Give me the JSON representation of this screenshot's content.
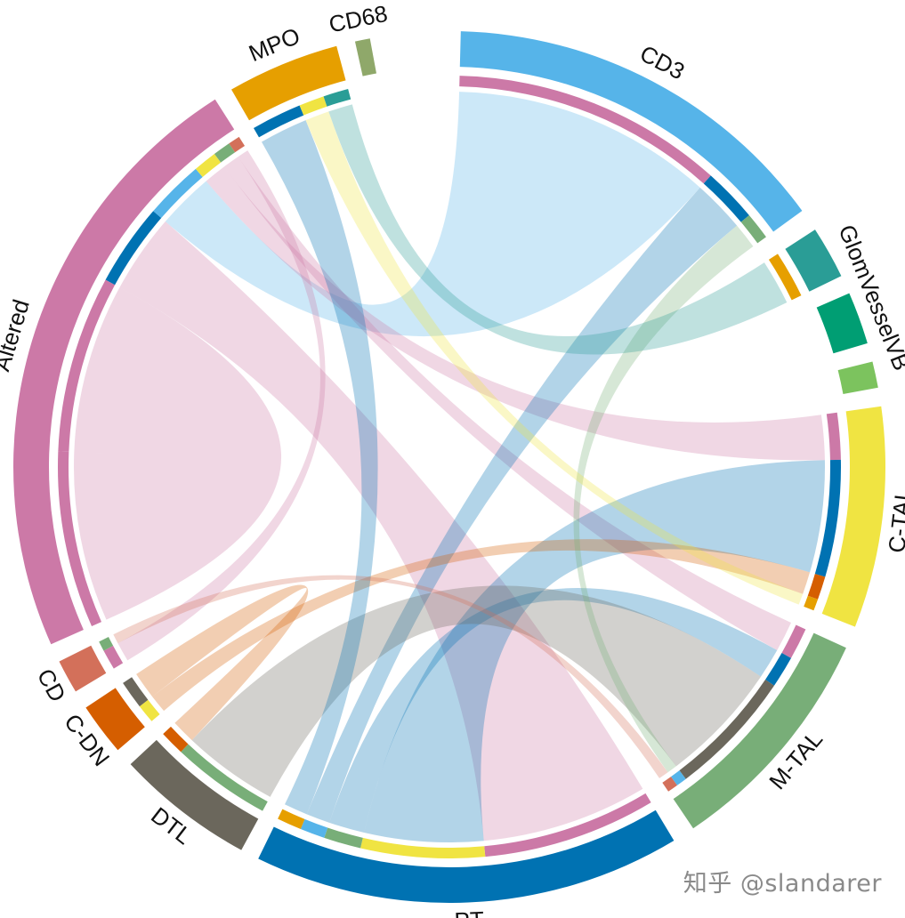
{
  "watermark": "知乎 @slandarer",
  "chart_data": {
    "type": "chord",
    "title": "",
    "segments": [
      {
        "name": "CD3",
        "color": "#56B4E9",
        "start_deg": 1.5,
        "end_deg": 54.0
      },
      {
        "name": "GlomVesselVB_a",
        "label": "",
        "color": "#2A9D96",
        "start_deg": 57.0,
        "end_deg": 64.0
      },
      {
        "name": "GlomVesselVB_b",
        "label": "",
        "color": "#009E73",
        "start_deg": 66.5,
        "end_deg": 73.5
      },
      {
        "name": "GlomVesselVB_c",
        "label": "",
        "color": "#7CC35E",
        "start_deg": 76.0,
        "end_deg": 79.5
      },
      {
        "name": "GlomVesselVB",
        "label": "GlomVesselVB",
        "color": "none",
        "start_deg": 57.0,
        "end_deg": 79.5
      },
      {
        "name": "C-TAL",
        "color": "#F0E442",
        "start_deg": 82.0,
        "end_deg": 111.5
      },
      {
        "name": "M-TAL",
        "color": "#78AE78",
        "start_deg": 114.5,
        "end_deg": 146.0
      },
      {
        "name": "PT",
        "color": "#0072B2",
        "start_deg": 149.0,
        "end_deg": 206.0
      },
      {
        "name": "DTL",
        "color": "#6B675C",
        "start_deg": 208.5,
        "end_deg": 227.0
      },
      {
        "name": "C-DN",
        "color": "#D55E00",
        "start_deg": 229.5,
        "end_deg": 236.5
      },
      {
        "name": "CD",
        "color": "#D3705A",
        "start_deg": 239.0,
        "end_deg": 243.5
      },
      {
        "name": "Altered",
        "color": "#CC79A7",
        "start_deg": 246.0,
        "end_deg": 327.5
      },
      {
        "name": "MPO",
        "color": "#E69F00",
        "start_deg": 330.0,
        "end_deg": 345.0
      },
      {
        "name": "CD68",
        "color": "#8FA86A",
        "start_deg": 347.5,
        "end_deg": 349.5
      }
    ],
    "links": [
      {
        "source": "Altered",
        "target": "Altered",
        "value": 30,
        "color": "#CC79A7"
      },
      {
        "source": "Altered",
        "target": "PT",
        "value": 14,
        "color": "#CC79A7"
      },
      {
        "source": "Altered",
        "target": "CD3",
        "value": 10,
        "color": "#56B4E9"
      },
      {
        "source": "Altered",
        "target": "C-TAL",
        "value": 4,
        "color": "#CC79A7"
      },
      {
        "source": "Altered",
        "target": "M-TAL",
        "value": 3,
        "color": "#CC79A7"
      },
      {
        "source": "PT",
        "target": "C-TAL",
        "value": 10,
        "color": "#0072B2"
      },
      {
        "source": "PT",
        "target": "M-TAL",
        "value": 3,
        "color": "#0072B2"
      },
      {
        "source": "PT",
        "target": "CD3",
        "value": 2,
        "color": "#0072B2"
      },
      {
        "source": "DTL",
        "target": "M-TAL",
        "value": 12,
        "color": "#6B675C"
      },
      {
        "source": "C-DN",
        "target": "C-TAL",
        "value": 2,
        "color": "#D55E00"
      },
      {
        "source": "DTL",
        "target": "C-DN",
        "value": 3,
        "color": "#D55E00"
      },
      {
        "source": "PT",
        "target": "MPO",
        "value": 2,
        "color": "#0072B2"
      },
      {
        "source": "M-TAL",
        "target": "CD3",
        "value": 1,
        "color": "#78AE78"
      },
      {
        "source": "C-TAL",
        "target": "MPO",
        "value": 1,
        "color": "#F0E442"
      },
      {
        "source": "Altered",
        "target": "CD",
        "value": 2,
        "color": "#CC79A7"
      },
      {
        "source": "CD",
        "target": "M-TAL",
        "value": 1,
        "color": "#D3705A"
      },
      {
        "source": "GlomVesselVB_a",
        "target": "MPO",
        "value": 1,
        "color": "#2A9D96"
      }
    ]
  }
}
